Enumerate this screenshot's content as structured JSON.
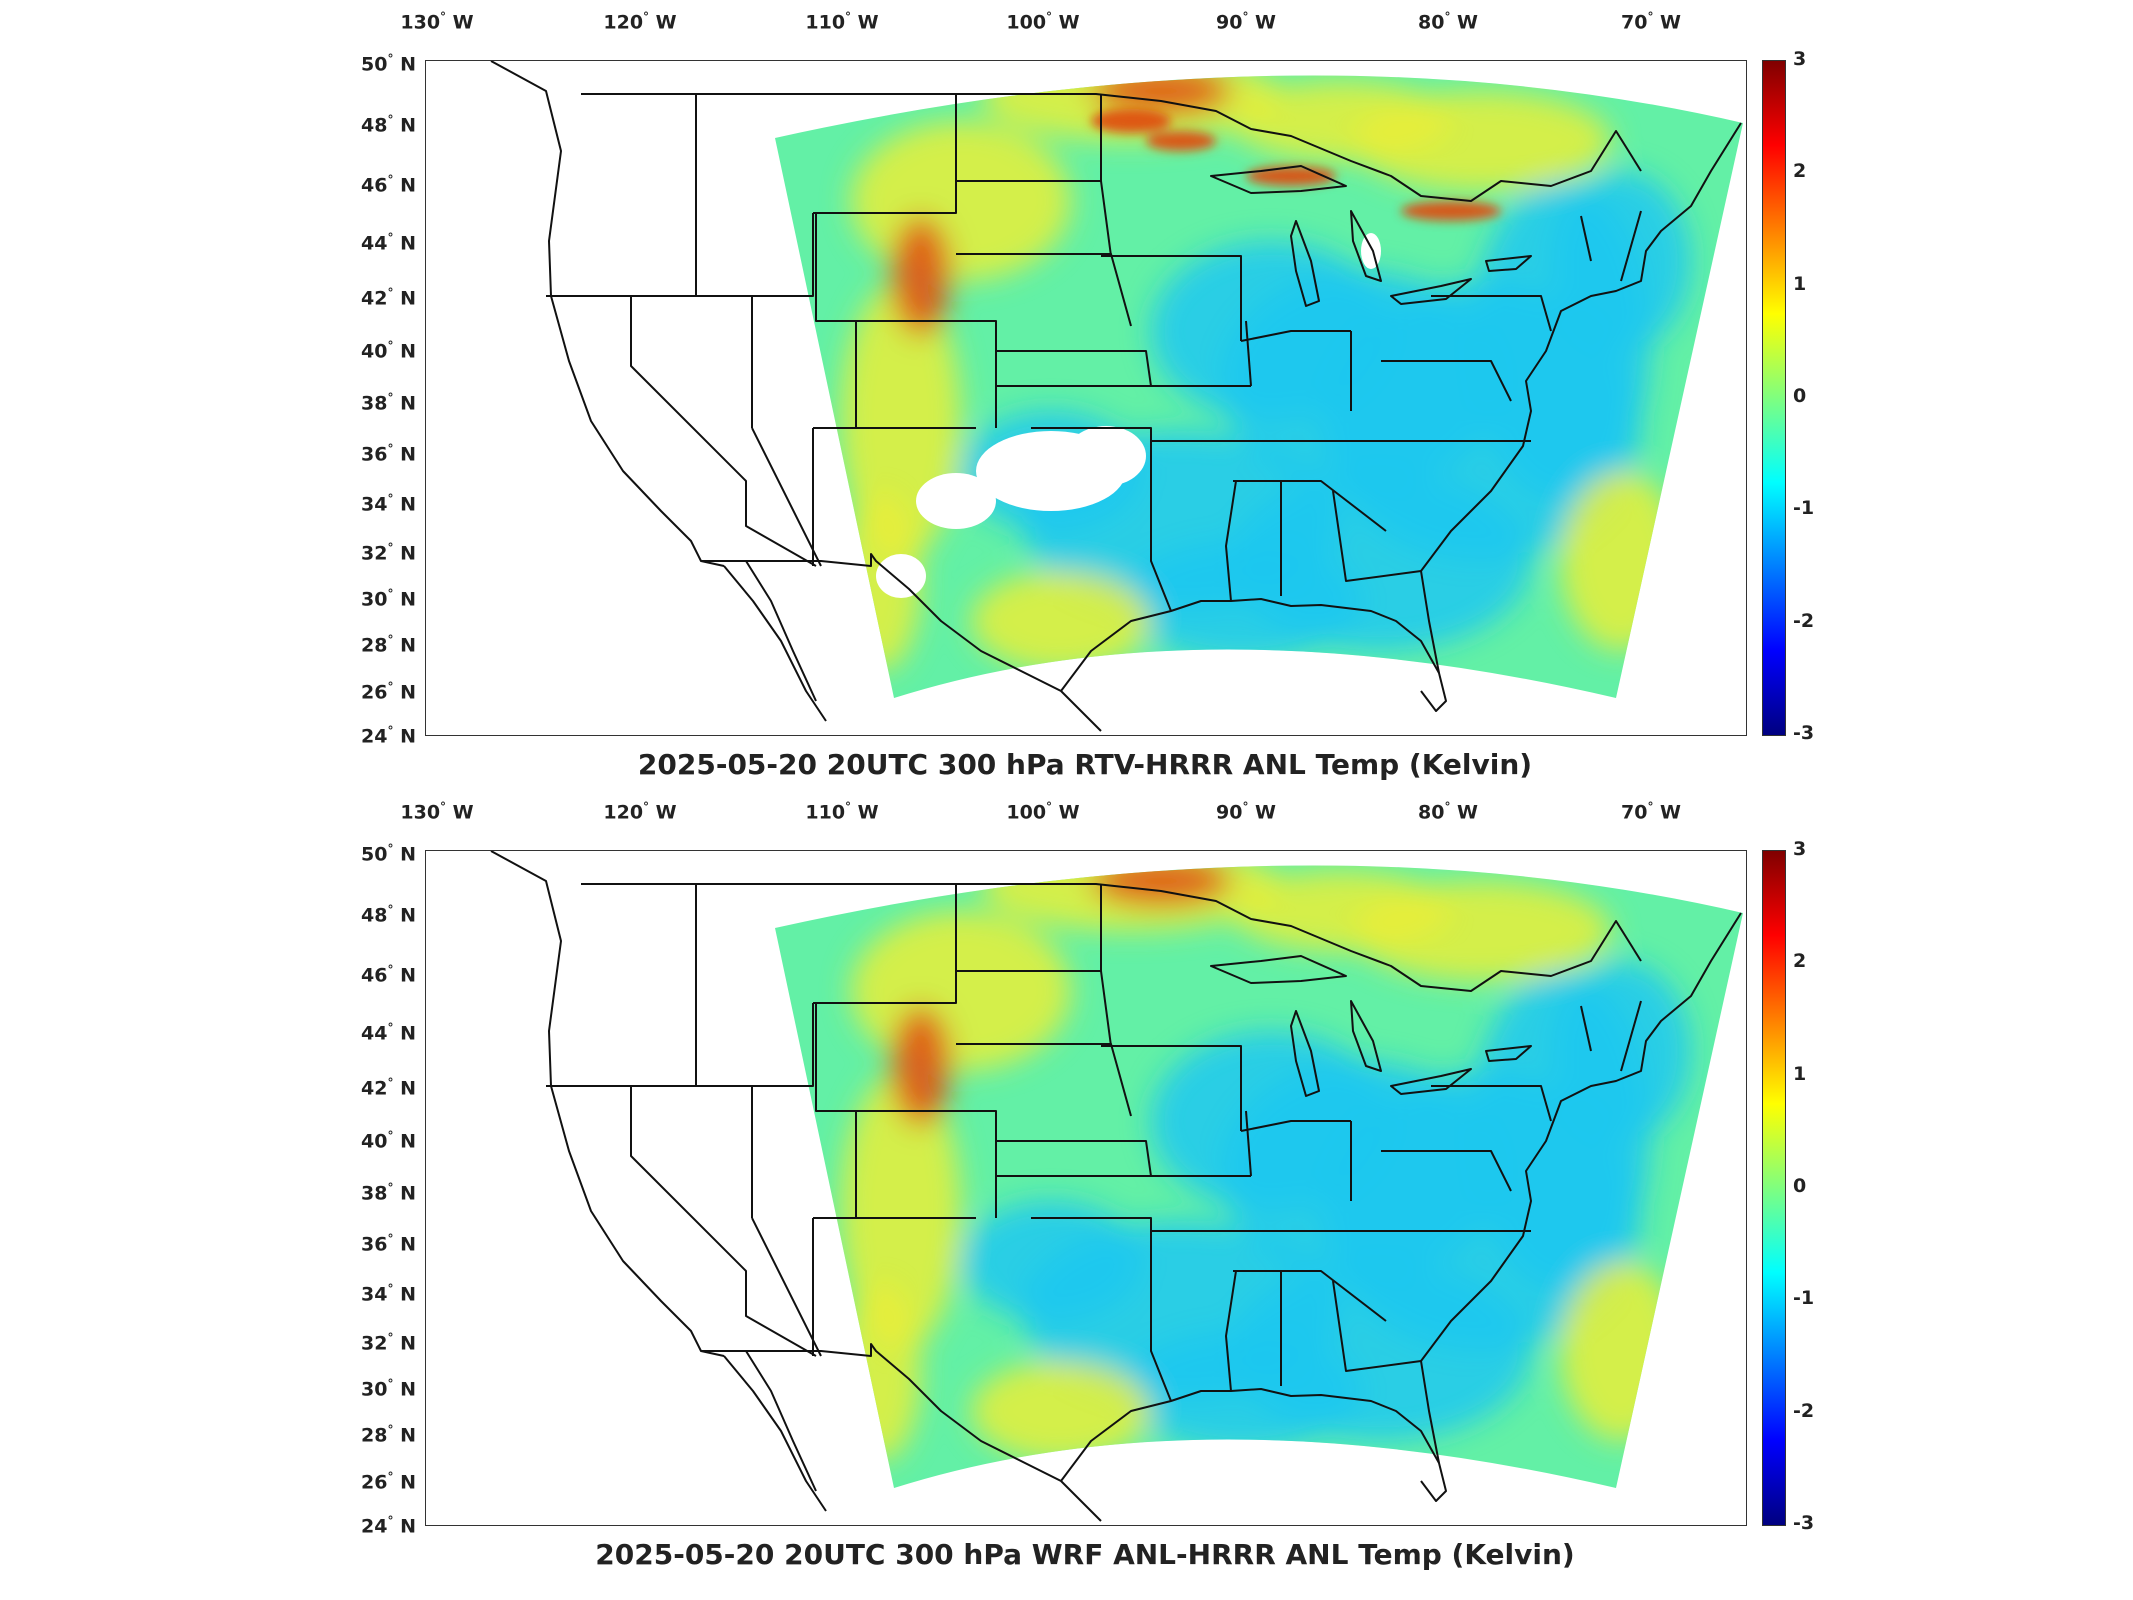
{
  "lon_ticks": [
    "130",
    "120",
    "110",
    "100",
    "90",
    "80",
    "70"
  ],
  "lon_suffix": "W",
  "lat_ticks": [
    "50",
    "48",
    "46",
    "44",
    "42",
    "40",
    "38",
    "36",
    "34",
    "32",
    "30",
    "28",
    "26",
    "24"
  ],
  "lat_suffix": "N",
  "colorbar": {
    "ticks": [
      "3",
      "2",
      "1",
      "0",
      "-1",
      "-2",
      "-3"
    ],
    "range": [
      -3,
      3
    ],
    "colormap": "jet"
  },
  "panels": [
    {
      "title": "2025-05-20 20UTC 300 hPa RTV-HRRR ANL Temp (Kelvin)",
      "has_missing_patches": true
    },
    {
      "title": "2025-05-20 20UTC 300 hPa WRF ANL-HRRR ANL Temp (Kelvin)",
      "has_missing_patches": false
    }
  ],
  "colors": {
    "field_base": "#63f0a6",
    "cool_anomaly": "#1ec8f0",
    "warm_anomaly": "#e8ee3a",
    "hot_anomaly": "#e04a10",
    "border": "#111111"
  }
}
